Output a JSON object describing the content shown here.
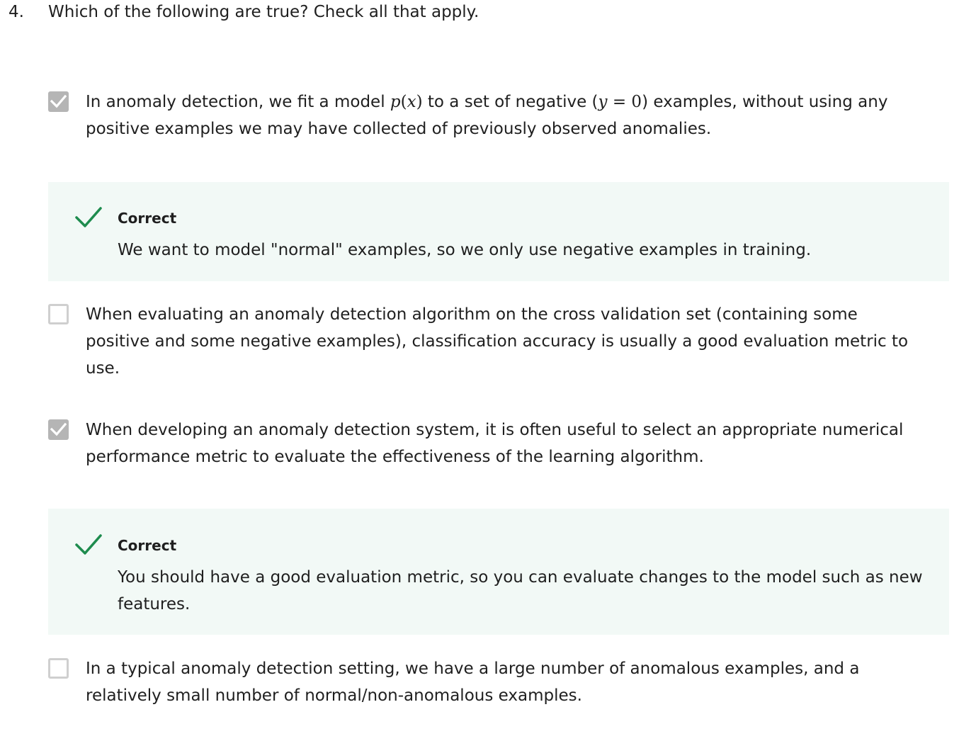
{
  "question": {
    "number": "4.",
    "prompt": "Which of the following are true? Check all that apply."
  },
  "options": [
    {
      "checked": true,
      "text_before_px": "In anomaly detection, we fit a model ",
      "math_p": "p",
      "math_x": "x",
      "text_mid": " to a set of negative (",
      "math_y": "y",
      "math_eq": " = 0",
      "text_after": ") examples, without using any positive examples we may have collected of previously observed anomalies.",
      "feedback": {
        "label": "Correct",
        "text": "We want to model \"normal\" examples, so we only use negative examples in training."
      }
    },
    {
      "checked": false,
      "text": "When evaluating an anomaly detection algorithm on the cross validation set (containing some positive and some negative examples), classification accuracy is usually a good evaluation metric to use."
    },
    {
      "checked": true,
      "text": "When developing an anomaly detection system, it is often useful to select an appropriate numerical performance metric to evaluate the effectiveness of the learning algorithm.",
      "feedback": {
        "label": "Correct",
        "text": "You should have a good evaluation metric, so you can evaluate changes to the model such as new features."
      }
    },
    {
      "checked": false,
      "text": "In a typical anomaly detection setting, we have a large number of anomalous examples, and a relatively small number of normal/non-anomalous examples."
    }
  ],
  "colors": {
    "checked_box": "#b5b5b5",
    "unchecked_border": "#cfcfcf",
    "feedback_bg": "#f2f9f6",
    "correct_check": "#1e8c4e"
  },
  "icons": {
    "checked": "checkmark-icon",
    "correct": "green-check-icon"
  }
}
